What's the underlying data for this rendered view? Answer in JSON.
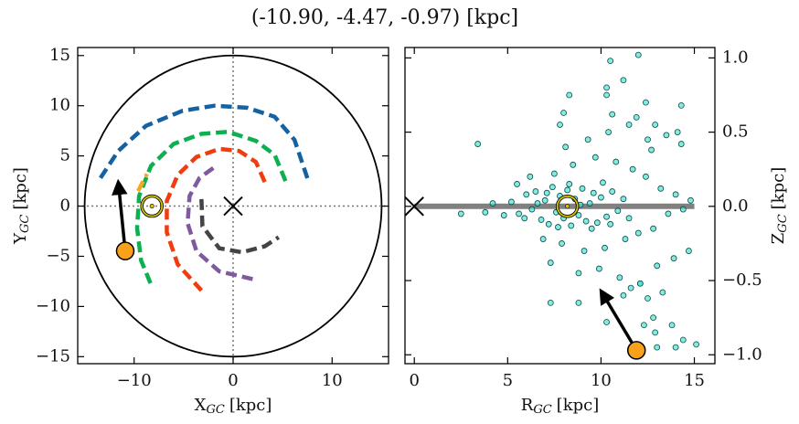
{
  "title": "(-10.90, -4.47, -0.97) [kpc]",
  "chart_data": [
    {
      "type": "line",
      "xlabel": {
        "text": "X",
        "sub": "GC",
        "unit": "[kpc]"
      },
      "ylabel": {
        "text": "Y",
        "sub": "GC",
        "unit": "[kpc]"
      },
      "xlim": [
        -15.7,
        15.7
      ],
      "ylim": [
        -15.7,
        15.8
      ],
      "xticks": [
        {
          "value": -10,
          "label": "−10"
        },
        0,
        10
      ],
      "yticks": [
        {
          "value": -15,
          "label": "−15"
        },
        {
          "value": -10,
          "label": "−10"
        },
        {
          "value": -5,
          "label": "−5"
        },
        0,
        5,
        10,
        15
      ],
      "circle_radius": 15,
      "series": [
        {
          "color": "#1562a3",
          "x": [
            -13.4,
            -11.6,
            -8.8,
            -5.1,
            -1.9,
            1.4,
            4.2,
            6.2,
            7.6
          ],
          "y": [
            2.8,
            5.5,
            8.0,
            9.5,
            10.0,
            9.8,
            8.9,
            6.6,
            2.5
          ]
        },
        {
          "color": "#0cb050",
          "x": [
            5.3,
            4.2,
            2.3,
            -0.5,
            -3.2,
            -6.0,
            -8.3,
            -9.5,
            -9.7,
            -9.3,
            -8.3
          ],
          "y": [
            2.5,
            5.1,
            6.5,
            7.4,
            7.2,
            6.2,
            4.0,
            1.0,
            -2.2,
            -5.4,
            -7.8
          ]
        },
        {
          "color": "#f03c10",
          "x": [
            3.2,
            2.3,
            0.6,
            -1.4,
            -3.7,
            -5.6,
            -6.7,
            -6.7,
            -5.6,
            -3.2
          ],
          "y": [
            2.4,
            4.4,
            5.5,
            5.7,
            4.9,
            3.1,
            0.5,
            -2.6,
            -5.8,
            -8.4
          ]
        },
        {
          "color": "#7f5a9e",
          "x": [
            -2.0,
            -3.4,
            -4.4,
            -4.6,
            -3.7,
            -1.4,
            2.1
          ],
          "y": [
            3.8,
            2.8,
            1.0,
            -1.7,
            -4.5,
            -6.5,
            -7.3
          ]
        },
        {
          "color": "#444444",
          "x": [
            -3.2,
            -3.1,
            -1.4,
            0.9,
            3.2,
            4.6
          ],
          "y": [
            0.7,
            -2.0,
            -4.2,
            -4.6,
            -4.0,
            -3.1
          ]
        },
        {
          "color": "#f5a623",
          "x": [
            -9.6,
            -8.7
          ],
          "y": [
            1.5,
            3.2
          ]
        }
      ],
      "center_marker": {
        "x": 0,
        "y": 0
      },
      "sun_marker": {
        "x": -8.2,
        "y": 0
      },
      "object_marker": {
        "x": -10.9,
        "y": -4.47,
        "color": "#f9a11b"
      },
      "arrow": {
        "x": [
          -10.9,
          -11.6
        ],
        "y": [
          -4.47,
          2.4
        ]
      }
    },
    {
      "type": "scatter",
      "xlabel": {
        "text": "R",
        "sub": "GC",
        "unit": "[kpc]"
      },
      "ylabel": {
        "text": "Z",
        "sub": "GC",
        "unit": "[kpc]"
      },
      "xlim": [
        -0.5,
        16.1
      ],
      "ylim": [
        -1.06,
        1.07
      ],
      "xticks": [
        0,
        5,
        10,
        15
      ],
      "yticks": [
        {
          "value": -1.0,
          "label": "−1.0"
        },
        {
          "value": -0.5,
          "label": "−0.5"
        },
        {
          "value": 0.0,
          "label": "0.0"
        },
        {
          "value": 0.5,
          "label": "0.5"
        },
        {
          "value": 1.0,
          "label": "1.0"
        }
      ],
      "color": "#40e0d0",
      "x": [
        5.2,
        5.6,
        6.0,
        6.3,
        6.5,
        6.8,
        7.0,
        7.2,
        7.4,
        7.6,
        7.8,
        8.0,
        8.2,
        8.4,
        8.6,
        8.8,
        9.0,
        9.2,
        9.4,
        9.6,
        9.8,
        10.0,
        10.3,
        10.6,
        10.9,
        5.9,
        6.6,
        7.1,
        7.7,
        8.3,
        8.9,
        9.5,
        10.1,
        10.5,
        11.2,
        11.5,
        7.5,
        7.9,
        8.5,
        9.1,
        9.7,
        10.2,
        10.8,
        11.3,
        11.7,
        12.0,
        12.4,
        12.8,
        13.2,
        13.6,
        14.0,
        14.4,
        14.8,
        6.2,
        6.9,
        5.5,
        4.8,
        4.2,
        3.4,
        2.5,
        3.8,
        9.3,
        9.9,
        10.4,
        11.0,
        11.5,
        12.1,
        12.5,
        13.0,
        13.5,
        13.9,
        14.3,
        14.7,
        12.9,
        11.9,
        10.6,
        8.8,
        8.1,
        7.3,
        13.3,
        12.7,
        12.0,
        10.3,
        11.2,
        12.4,
        8.3,
        7.8,
        10.5,
        10.3,
        14.3,
        14.1,
        8.8,
        7.3,
        10.3,
        12.3,
        12.8,
        12.1,
        11.2,
        13.0,
        14.0,
        14.4,
        15.1,
        13.8,
        12.9,
        11.6,
        12.5,
        8.0
      ],
      "y": [
        0.03,
        -0.05,
        0.08,
        -0.02,
        0.1,
        -0.09,
        0.04,
        -0.12,
        0.13,
        -0.04,
        0.07,
        -0.08,
        0.11,
        -0.13,
        0.05,
        -0.06,
        0.12,
        -0.1,
        0.02,
        0.09,
        -0.11,
        0.06,
        -0.07,
        0.1,
        -0.03,
        -0.08,
        0.02,
        0.09,
        -0.14,
        0.15,
        0.01,
        -0.15,
        0.16,
        -0.12,
        0.05,
        -0.08,
        0.22,
        -0.25,
        0.28,
        -0.3,
        0.33,
        -0.28,
        0.3,
        -0.22,
        0.25,
        -0.18,
        0.2,
        -0.15,
        0.12,
        -0.05,
        0.08,
        -0.02,
        0.04,
        0.2,
        -0.22,
        0.15,
        -0.06,
        0.02,
        0.42,
        -0.05,
        -0.04,
        0.45,
        -0.42,
        0.5,
        -0.48,
        0.55,
        -0.52,
        0.45,
        -0.4,
        0.48,
        -0.35,
        0.42,
        -0.3,
        0.55,
        0.6,
        0.62,
        -0.45,
        0.4,
        -0.38,
        -0.58,
        0.38,
        1.02,
        0.8,
        0.85,
        0.7,
        0.75,
        0.55,
        0.98,
        0.75,
        0.68,
        0.5,
        -0.65,
        -0.65,
        -0.78,
        -0.8,
        -0.75,
        -0.52,
        -0.6,
        -0.95,
        -0.95,
        -0.9,
        -0.93,
        -0.8,
        -0.85,
        -0.55,
        -0.62,
        0.63
      ],
      "plane_line": {
        "x": [
          0,
          15
        ],
        "y": [
          0,
          0
        ],
        "color": "#808080"
      },
      "center_marker": {
        "x": 0,
        "y": 0
      },
      "sun_marker": {
        "x": 8.2,
        "y": 0
      },
      "object_marker": {
        "x": 11.9,
        "y": -0.97,
        "color": "#f9a11b"
      },
      "arrow": {
        "x": [
          11.9,
          10.0
        ],
        "y": [
          -0.97,
          -0.57
        ]
      }
    }
  ]
}
